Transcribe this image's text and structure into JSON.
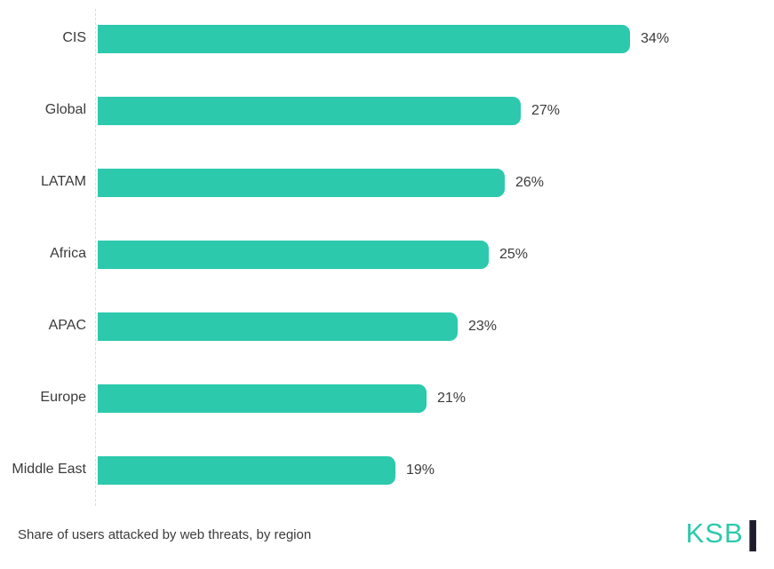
{
  "chart_data": {
    "type": "bar",
    "orientation": "horizontal",
    "categories": [
      "CIS",
      "Global",
      "LATAM",
      "Africa",
      "APAC",
      "Europe",
      "Middle East"
    ],
    "values": [
      34,
      27,
      26,
      25,
      23,
      21,
      19
    ],
    "value_labels": [
      "34%",
      "27%",
      "26%",
      "25%",
      "23%",
      "21%",
      "19%"
    ],
    "title": "",
    "xlabel": "",
    "ylabel": "",
    "xlim": [
      0,
      42
    ],
    "grid": false,
    "legend": false,
    "caption": "Share of users attacked by web threats, by region"
  },
  "colors": {
    "bar": "#2cc9ac",
    "text": "#3b3b3b",
    "axis": "#dcdcdc",
    "logo_teal": "#2cc9ac",
    "logo_mark": "#1d1d2b"
  },
  "logo": {
    "text": "KSB",
    "mark": "|"
  }
}
